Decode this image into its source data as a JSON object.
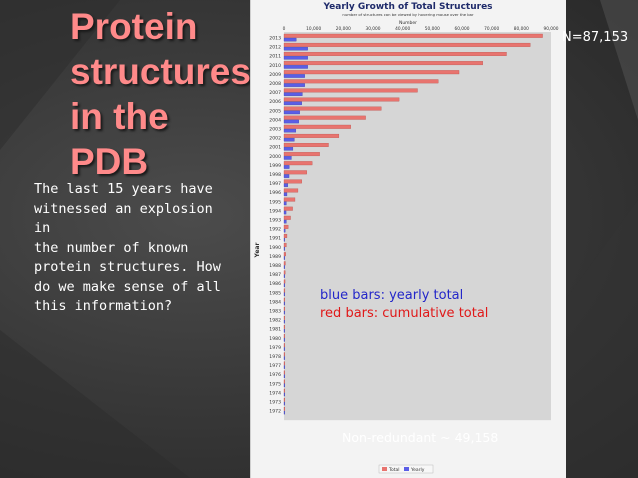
{
  "slide": {
    "title_lines": [
      "Protein",
      "structures",
      "in the",
      "PDB"
    ],
    "body_lines": [
      "The last 15 years have",
      "witnessed an explosion in",
      "the number of known",
      "protein structures.  How",
      "do we make sense of all",
      "this information?"
    ],
    "n_label": "N=87,153",
    "caption_blue": "blue bars: yearly total",
    "caption_red": "red bars: cumulative total",
    "nonredundant": "Non-redundant ~ 49,158",
    "colors": {
      "title": "#ff8a8a",
      "blue_series": "#5b5ee6",
      "red_series": "#e8746f"
    }
  },
  "chart_data": {
    "type": "bar",
    "orientation": "horizontal",
    "title": "Yearly Growth of Total Structures",
    "subtitle": "number of structures can be viewed by hovering mouse over the bar",
    "xlabel": "Number",
    "ylabel": "Year",
    "x_ticks": [
      "0",
      "10,000",
      "20,000",
      "30,000",
      "40,000",
      "50,000",
      "60,000",
      "70,000",
      "80,000",
      "90,000"
    ],
    "xlim": [
      0,
      90000
    ],
    "categories": [
      "2013",
      "2012",
      "2011",
      "2010",
      "2009",
      "2008",
      "2007",
      "2006",
      "2005",
      "2004",
      "2003",
      "2002",
      "2001",
      "2000",
      "1999",
      "1998",
      "1997",
      "1996",
      "1995",
      "1994",
      "1993",
      "1992",
      "1991",
      "1990",
      "1989",
      "1988",
      "1987",
      "1986",
      "1985",
      "1984",
      "1983",
      "1982",
      "1981",
      "1980",
      "1979",
      "1978",
      "1977",
      "1976",
      "1975",
      "1974",
      "1973",
      "1972"
    ],
    "series": [
      {
        "name": "Total",
        "values": [
          87153,
          83000,
          75000,
          67000,
          59000,
          52000,
          45000,
          38800,
          32800,
          27500,
          22500,
          18500,
          15000,
          12000,
          9500,
          7700,
          6000,
          4700,
          3700,
          2900,
          2200,
          1400,
          1000,
          800,
          600,
          480,
          410,
          360,
          300,
          250,
          200,
          170,
          140,
          110,
          90,
          70,
          50,
          37,
          25,
          17,
          10,
          8
        ]
      },
      {
        "name": "Yearly",
        "values": [
          4150,
          8000,
          8000,
          8000,
          7000,
          7000,
          6200,
          6000,
          5300,
          5000,
          4000,
          3500,
          3000,
          2500,
          1800,
          1700,
          1300,
          1000,
          800,
          700,
          800,
          400,
          200,
          200,
          120,
          70,
          50,
          60,
          50,
          50,
          30,
          30,
          30,
          20,
          20,
          20,
          13,
          12,
          8,
          7,
          2,
          8
        ]
      }
    ],
    "legend": {
      "position": "bottom",
      "entries": [
        "Total",
        "Yearly"
      ]
    },
    "grid": false
  }
}
